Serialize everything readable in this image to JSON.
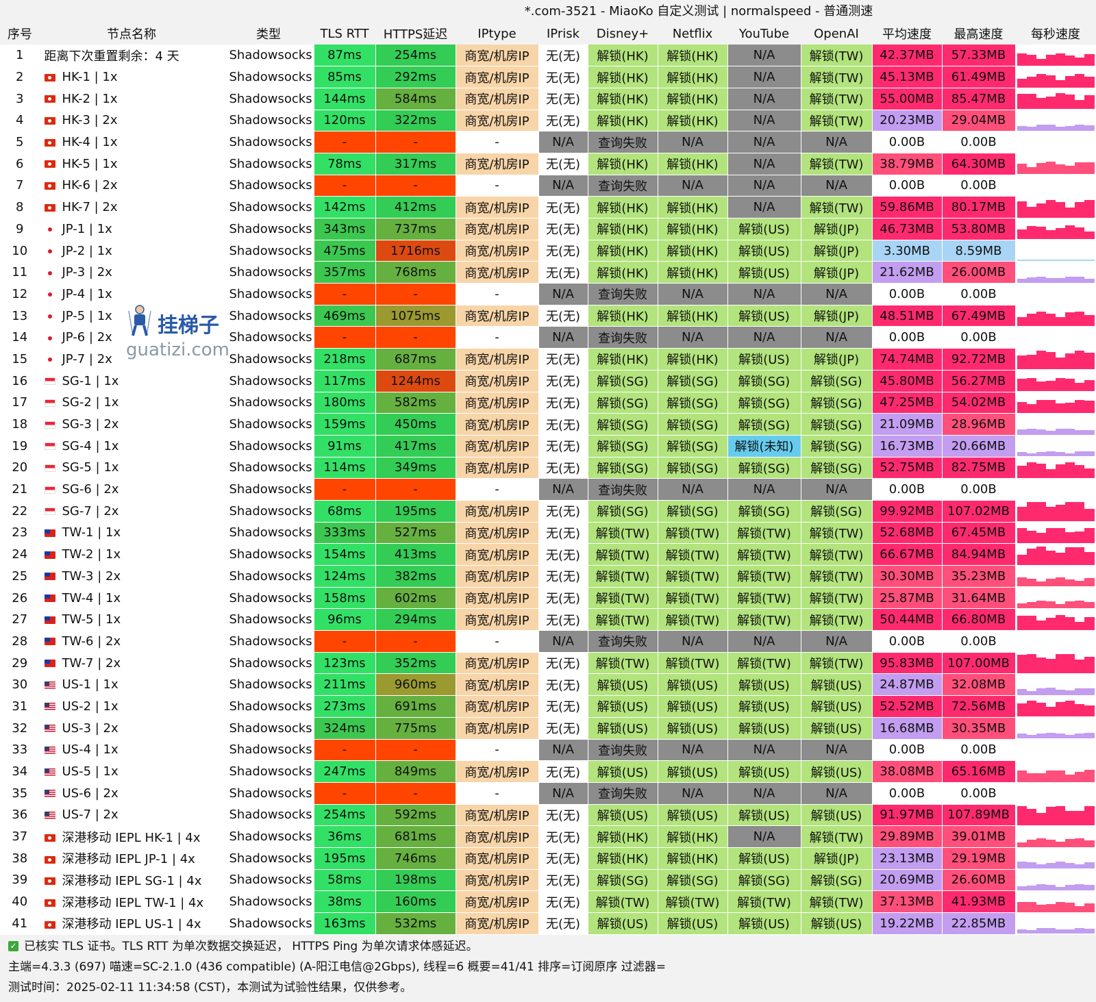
{
  "title": "*.com-3521 - MiaoKo 自定义测试 | normalspeed - 普通测速",
  "columns": [
    "序号",
    "节点名称",
    "类型",
    "TLS RTT",
    "HTTPS延迟",
    "IPtype",
    "IPrisk",
    "Disney+",
    "Netflix",
    "YouTube",
    "OpenAI",
    "平均速度",
    "最高速度",
    "每秒速度"
  ],
  "rows": [
    [
      "1",
      "",
      "距离下次重置剩余：4 天",
      "Shadowsocks",
      "87ms",
      "254ms",
      "商宽/机房IP",
      "无(无)",
      "解锁(HK)",
      "解锁(HK)",
      "N/A",
      "解锁(TW)",
      "42.37MB",
      "57.33MB"
    ],
    [
      "2",
      "hk",
      "HK-1 | 1x",
      "Shadowsocks",
      "85ms",
      "292ms",
      "商宽/机房IP",
      "无(无)",
      "解锁(HK)",
      "解锁(HK)",
      "N/A",
      "解锁(TW)",
      "45.13MB",
      "61.49MB"
    ],
    [
      "3",
      "hk",
      "HK-2 | 1x",
      "Shadowsocks",
      "144ms",
      "584ms",
      "商宽/机房IP",
      "无(无)",
      "解锁(HK)",
      "解锁(HK)",
      "N/A",
      "解锁(TW)",
      "55.00MB",
      "85.47MB"
    ],
    [
      "4",
      "hk",
      "HK-3 | 2x",
      "Shadowsocks",
      "120ms",
      "322ms",
      "商宽/机房IP",
      "无(无)",
      "解锁(HK)",
      "解锁(HK)",
      "N/A",
      "解锁(TW)",
      "20.23MB",
      "29.04MB"
    ],
    [
      "5",
      "hk",
      "HK-4 | 1x",
      "Shadowsocks",
      "-",
      "-",
      "-",
      "N/A",
      "查询失败",
      "N/A",
      "N/A",
      "N/A",
      "0.00B",
      "0.00B"
    ],
    [
      "6",
      "hk",
      "HK-5 | 1x",
      "Shadowsocks",
      "78ms",
      "317ms",
      "商宽/机房IP",
      "无(无)",
      "解锁(HK)",
      "解锁(HK)",
      "N/A",
      "解锁(TW)",
      "38.79MB",
      "64.30MB"
    ],
    [
      "7",
      "hk",
      "HK-6 | 2x",
      "Shadowsocks",
      "-",
      "-",
      "-",
      "N/A",
      "查询失败",
      "N/A",
      "N/A",
      "N/A",
      "0.00B",
      "0.00B"
    ],
    [
      "8",
      "hk",
      "HK-7 | 2x",
      "Shadowsocks",
      "142ms",
      "412ms",
      "商宽/机房IP",
      "无(无)",
      "解锁(HK)",
      "解锁(HK)",
      "N/A",
      "解锁(TW)",
      "59.86MB",
      "80.17MB"
    ],
    [
      "9",
      "jp",
      "JP-1 | 1x",
      "Shadowsocks",
      "343ms",
      "737ms",
      "商宽/机房IP",
      "无(无)",
      "解锁(HK)",
      "解锁(HK)",
      "解锁(US)",
      "解锁(JP)",
      "46.73MB",
      "53.80MB"
    ],
    [
      "10",
      "jp",
      "JP-2 | 1x",
      "Shadowsocks",
      "475ms",
      "1716ms",
      "商宽/机房IP",
      "无(无)",
      "解锁(HK)",
      "解锁(HK)",
      "解锁(US)",
      "解锁(JP)",
      "3.30MB",
      "8.59MB"
    ],
    [
      "11",
      "jp",
      "JP-3 | 2x",
      "Shadowsocks",
      "357ms",
      "768ms",
      "商宽/机房IP",
      "无(无)",
      "解锁(HK)",
      "解锁(HK)",
      "解锁(US)",
      "解锁(JP)",
      "21.62MB",
      "26.00MB"
    ],
    [
      "12",
      "jp",
      "JP-4 | 1x",
      "Shadowsocks",
      "-",
      "-",
      "-",
      "N/A",
      "查询失败",
      "N/A",
      "N/A",
      "N/A",
      "0.00B",
      "0.00B"
    ],
    [
      "13",
      "jp",
      "JP-5 | 1x",
      "Shadowsocks",
      "469ms",
      "1075ms",
      "商宽/机房IP",
      "无(无)",
      "解锁(HK)",
      "解锁(HK)",
      "解锁(US)",
      "解锁(JP)",
      "48.51MB",
      "67.49MB"
    ],
    [
      "14",
      "jp",
      "JP-6 | 2x",
      "Shadowsocks",
      "-",
      "-",
      "-",
      "N/A",
      "查询失败",
      "N/A",
      "N/A",
      "N/A",
      "0.00B",
      "0.00B"
    ],
    [
      "15",
      "jp",
      "JP-7 | 2x",
      "Shadowsocks",
      "218ms",
      "687ms",
      "商宽/机房IP",
      "无(无)",
      "解锁(HK)",
      "解锁(HK)",
      "解锁(US)",
      "解锁(JP)",
      "74.74MB",
      "92.72MB"
    ],
    [
      "16",
      "sg",
      "SG-1 | 1x",
      "Shadowsocks",
      "117ms",
      "1244ms",
      "商宽/机房IP",
      "无(无)",
      "解锁(SG)",
      "解锁(SG)",
      "解锁(SG)",
      "解锁(SG)",
      "45.80MB",
      "56.27MB"
    ],
    [
      "17",
      "sg",
      "SG-2 | 1x",
      "Shadowsocks",
      "180ms",
      "582ms",
      "商宽/机房IP",
      "无(无)",
      "解锁(SG)",
      "解锁(SG)",
      "解锁(SG)",
      "解锁(SG)",
      "47.25MB",
      "54.02MB"
    ],
    [
      "18",
      "sg",
      "SG-3 | 2x",
      "Shadowsocks",
      "159ms",
      "450ms",
      "商宽/机房IP",
      "无(无)",
      "解锁(SG)",
      "解锁(SG)",
      "解锁(SG)",
      "解锁(SG)",
      "21.09MB",
      "28.96MB"
    ],
    [
      "19",
      "sg",
      "SG-4 | 1x",
      "Shadowsocks",
      "91ms",
      "417ms",
      "商宽/机房IP",
      "无(无)",
      "解锁(SG)",
      "解锁(SG)",
      "解锁(未知)",
      "解锁(SG)",
      "16.73MB",
      "20.66MB"
    ],
    [
      "20",
      "sg",
      "SG-5 | 1x",
      "Shadowsocks",
      "114ms",
      "349ms",
      "商宽/机房IP",
      "无(无)",
      "解锁(SG)",
      "解锁(SG)",
      "解锁(SG)",
      "解锁(SG)",
      "52.75MB",
      "82.75MB"
    ],
    [
      "21",
      "sg",
      "SG-6 | 2x",
      "Shadowsocks",
      "-",
      "-",
      "-",
      "N/A",
      "查询失败",
      "N/A",
      "N/A",
      "N/A",
      "0.00B",
      "0.00B"
    ],
    [
      "22",
      "sg",
      "SG-7 | 2x",
      "Shadowsocks",
      "68ms",
      "195ms",
      "商宽/机房IP",
      "无(无)",
      "解锁(SG)",
      "解锁(SG)",
      "解锁(SG)",
      "解锁(SG)",
      "99.92MB",
      "107.02MB"
    ],
    [
      "23",
      "tw",
      "TW-1 | 1x",
      "Shadowsocks",
      "333ms",
      "527ms",
      "商宽/机房IP",
      "无(无)",
      "解锁(TW)",
      "解锁(TW)",
      "解锁(TW)",
      "解锁(TW)",
      "52.68MB",
      "67.45MB"
    ],
    [
      "24",
      "tw",
      "TW-2 | 1x",
      "Shadowsocks",
      "154ms",
      "413ms",
      "商宽/机房IP",
      "无(无)",
      "解锁(TW)",
      "解锁(TW)",
      "解锁(TW)",
      "解锁(TW)",
      "66.67MB",
      "84.94MB"
    ],
    [
      "25",
      "tw",
      "TW-3 | 2x",
      "Shadowsocks",
      "124ms",
      "382ms",
      "商宽/机房IP",
      "无(无)",
      "解锁(TW)",
      "解锁(TW)",
      "解锁(TW)",
      "解锁(TW)",
      "30.30MB",
      "35.23MB"
    ],
    [
      "26",
      "tw",
      "TW-4 | 1x",
      "Shadowsocks",
      "158ms",
      "602ms",
      "商宽/机房IP",
      "无(无)",
      "解锁(TW)",
      "解锁(TW)",
      "解锁(TW)",
      "解锁(TW)",
      "25.87MB",
      "31.64MB"
    ],
    [
      "27",
      "tw",
      "TW-5 | 1x",
      "Shadowsocks",
      "96ms",
      "294ms",
      "商宽/机房IP",
      "无(无)",
      "解锁(TW)",
      "解锁(TW)",
      "解锁(TW)",
      "解锁(TW)",
      "50.44MB",
      "66.80MB"
    ],
    [
      "28",
      "tw",
      "TW-6 | 2x",
      "Shadowsocks",
      "-",
      "-",
      "-",
      "N/A",
      "查询失败",
      "N/A",
      "N/A",
      "N/A",
      "0.00B",
      "0.00B"
    ],
    [
      "29",
      "tw",
      "TW-7 | 2x",
      "Shadowsocks",
      "123ms",
      "352ms",
      "商宽/机房IP",
      "无(无)",
      "解锁(TW)",
      "解锁(TW)",
      "解锁(TW)",
      "解锁(TW)",
      "95.83MB",
      "107.00MB"
    ],
    [
      "30",
      "us",
      "US-1 | 1x",
      "Shadowsocks",
      "211ms",
      "960ms",
      "商宽/机房IP",
      "无(无)",
      "解锁(US)",
      "解锁(US)",
      "解锁(US)",
      "解锁(US)",
      "24.87MB",
      "32.08MB"
    ],
    [
      "31",
      "us",
      "US-2 | 1x",
      "Shadowsocks",
      "273ms",
      "691ms",
      "商宽/机房IP",
      "无(无)",
      "解锁(US)",
      "解锁(US)",
      "解锁(US)",
      "解锁(US)",
      "52.52MB",
      "72.56MB"
    ],
    [
      "32",
      "us",
      "US-3 | 2x",
      "Shadowsocks",
      "324ms",
      "775ms",
      "商宽/机房IP",
      "无(无)",
      "解锁(US)",
      "解锁(US)",
      "解锁(US)",
      "解锁(US)",
      "16.68MB",
      "30.35MB"
    ],
    [
      "33",
      "us",
      "US-4 | 1x",
      "Shadowsocks",
      "-",
      "-",
      "-",
      "N/A",
      "查询失败",
      "N/A",
      "N/A",
      "N/A",
      "0.00B",
      "0.00B"
    ],
    [
      "34",
      "us",
      "US-5 | 1x",
      "Shadowsocks",
      "247ms",
      "849ms",
      "商宽/机房IP",
      "无(无)",
      "解锁(US)",
      "解锁(US)",
      "解锁(US)",
      "解锁(US)",
      "38.08MB",
      "65.16MB"
    ],
    [
      "35",
      "us",
      "US-6 | 2x",
      "Shadowsocks",
      "-",
      "-",
      "-",
      "N/A",
      "查询失败",
      "N/A",
      "N/A",
      "N/A",
      "0.00B",
      "0.00B"
    ],
    [
      "36",
      "us",
      "US-7 | 2x",
      "Shadowsocks",
      "254ms",
      "592ms",
      "商宽/机房IP",
      "无(无)",
      "解锁(US)",
      "解锁(US)",
      "解锁(US)",
      "解锁(US)",
      "91.97MB",
      "107.89MB"
    ],
    [
      "37",
      "hk",
      "深港移动 IEPL HK-1 | 4x",
      "Shadowsocks",
      "36ms",
      "681ms",
      "商宽/机房IP",
      "无(无)",
      "解锁(HK)",
      "解锁(HK)",
      "N/A",
      "解锁(TW)",
      "29.89MB",
      "39.01MB"
    ],
    [
      "38",
      "hk",
      "深港移动 IEPL JP-1 | 4x",
      "Shadowsocks",
      "195ms",
      "746ms",
      "商宽/机房IP",
      "无(无)",
      "解锁(HK)",
      "解锁(HK)",
      "解锁(US)",
      "解锁(JP)",
      "23.13MB",
      "29.19MB"
    ],
    [
      "39",
      "hk",
      "深港移动 IEPL SG-1 | 4x",
      "Shadowsocks",
      "58ms",
      "198ms",
      "商宽/机房IP",
      "无(无)",
      "解锁(SG)",
      "解锁(SG)",
      "解锁(SG)",
      "解锁(SG)",
      "20.69MB",
      "26.60MB"
    ],
    [
      "40",
      "hk",
      "深港移动 IEPL TW-1 | 4x",
      "Shadowsocks",
      "38ms",
      "160ms",
      "商宽/机房IP",
      "无(无)",
      "解锁(TW)",
      "解锁(TW)",
      "解锁(TW)",
      "解锁(TW)",
      "37.13MB",
      "41.93MB"
    ],
    [
      "41",
      "hk",
      "深港移动 IEPL US-1 | 4x",
      "Shadowsocks",
      "163ms",
      "532ms",
      "商宽/机房IP",
      "无(无)",
      "解锁(US)",
      "解锁(US)",
      "解锁(US)",
      "解锁(US)",
      "19.22MB",
      "22.85MB"
    ]
  ],
  "footer": {
    "line1": "已核实 TLS 证书。TLS RTT 为单次数据交换延迟， HTTPS Ping 为单次请求体感延迟。",
    "line2": "主端=4.3.3 (697) 喵速=SC-2.1.0 (436 compatible) (A-阳江电信@2Gbps), 线程=6 概要=41/41 排序=订阅原序 过滤器=",
    "line3": "测试时间：2025-02-11 11:34:58 (CST)，本测试为试验性结果，仅供参考。"
  },
  "watermark": {
    "text": "挂梯子",
    "url": "guatizi.com"
  },
  "colors": {
    "tls_good": "#33e066",
    "tls_mid": "#3cc850",
    "https_good": "#33cc55",
    "https_mid": "#66b040",
    "https_slow": "#9a9a30",
    "https_bad": "#dd4a10",
    "fail": "#ff4500",
    "iptype": "#f8d5a8",
    "unlock": "#b2e37c",
    "unknown": "#66ccee",
    "na": "#8c8c8c",
    "speed_high": "#ff2a6e",
    "speed_mid": "#ff4f7a",
    "speed_low": "#c29df0",
    "speed_vlow": "#a8d4f5"
  }
}
